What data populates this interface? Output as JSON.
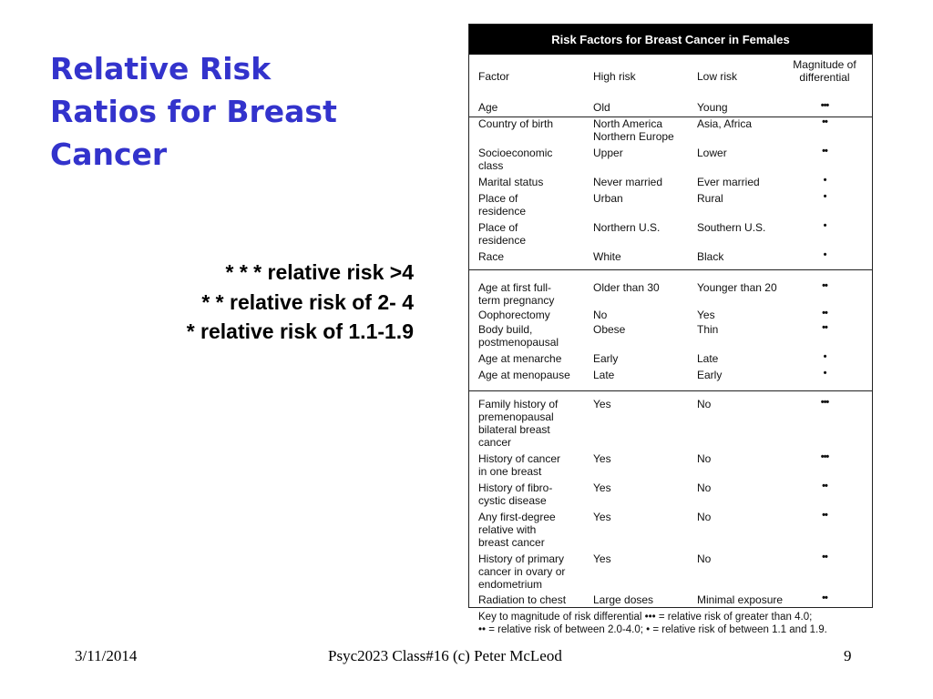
{
  "slide": {
    "title_lines": [
      "Relative Risk",
      "Ratios for Breast",
      "Cancer"
    ],
    "legend_lines": [
      "* * * relative risk >4",
      "* * relative risk of 2- 4",
      "* relative risk of 1.1-1.9"
    ]
  },
  "table": {
    "title": "Risk Factors for Breast Cancer in Females",
    "headers": {
      "factor": "Factor",
      "high": "High risk",
      "low": "Low risk",
      "magnitude": "Magnitude of\ndifferential"
    },
    "rows": [
      {
        "factor": "Age",
        "high": "Old",
        "low": "Young",
        "mag": "•••"
      },
      {
        "factor": "Country of birth",
        "high": "North America\nNorthern Europe",
        "low": "Asia, Africa",
        "mag": "••"
      },
      {
        "factor": "Socioeconomic\nclass",
        "high": "Upper",
        "low": "Lower",
        "mag": "••"
      },
      {
        "factor": "Marital status",
        "high": "Never married",
        "low": "Ever married",
        "mag": "•"
      },
      {
        "factor": "Place of\nresidence",
        "high": "Urban",
        "low": "Rural",
        "mag": "•"
      },
      {
        "factor": "Place of\nresidence",
        "high": "Northern U.S.",
        "low": "Southern U.S.",
        "mag": "•"
      },
      {
        "factor": "Race",
        "high": "White",
        "low": "Black",
        "mag": "•"
      },
      {
        "factor": "Age at first full-\nterm pregnancy",
        "high": "Older than 30",
        "low": "Younger than 20",
        "mag": "••"
      },
      {
        "factor": "Oophorectomy",
        "high": "No",
        "low": "Yes",
        "mag": "••"
      },
      {
        "factor": "Body build,\npostmenopausal",
        "high": "Obese",
        "low": "Thin",
        "mag": "••"
      },
      {
        "factor": "Age at menarche",
        "high": "Early",
        "low": "Late",
        "mag": "•"
      },
      {
        "factor": "Age at menopause",
        "high": "Late",
        "low": "Early",
        "mag": "•"
      },
      {
        "factor": "Family history of\npremenopausal\nbilateral breast\ncancer",
        "high": "Yes",
        "low": "No",
        "mag": "•••"
      },
      {
        "factor": "History of cancer\nin one breast",
        "high": "Yes",
        "low": "No",
        "mag": "•••"
      },
      {
        "factor": "History of fibro-\ncystic disease",
        "high": "Yes",
        "low": "No",
        "mag": "••"
      },
      {
        "factor": "Any first-degree\nrelative with\nbreast cancer",
        "high": "Yes",
        "low": "No",
        "mag": "••"
      },
      {
        "factor": "History of primary\ncancer in ovary or\nendometrium",
        "high": "Yes",
        "low": "No",
        "mag": "••"
      },
      {
        "factor": "Radiation to chest",
        "high": "Large doses",
        "low": "Minimal exposure",
        "mag": "••"
      }
    ],
    "key_lines": [
      "Key to magnitude of risk differential ••• = relative risk of greater than 4.0;",
      "•• = relative risk of between 2.0-4.0; • = relative risk of between 1.1 and 1.9."
    ]
  },
  "footer": {
    "date": "3/11/2014",
    "center": "Psyc2023 Class#16 (c) Peter McLeod",
    "page": "9"
  }
}
